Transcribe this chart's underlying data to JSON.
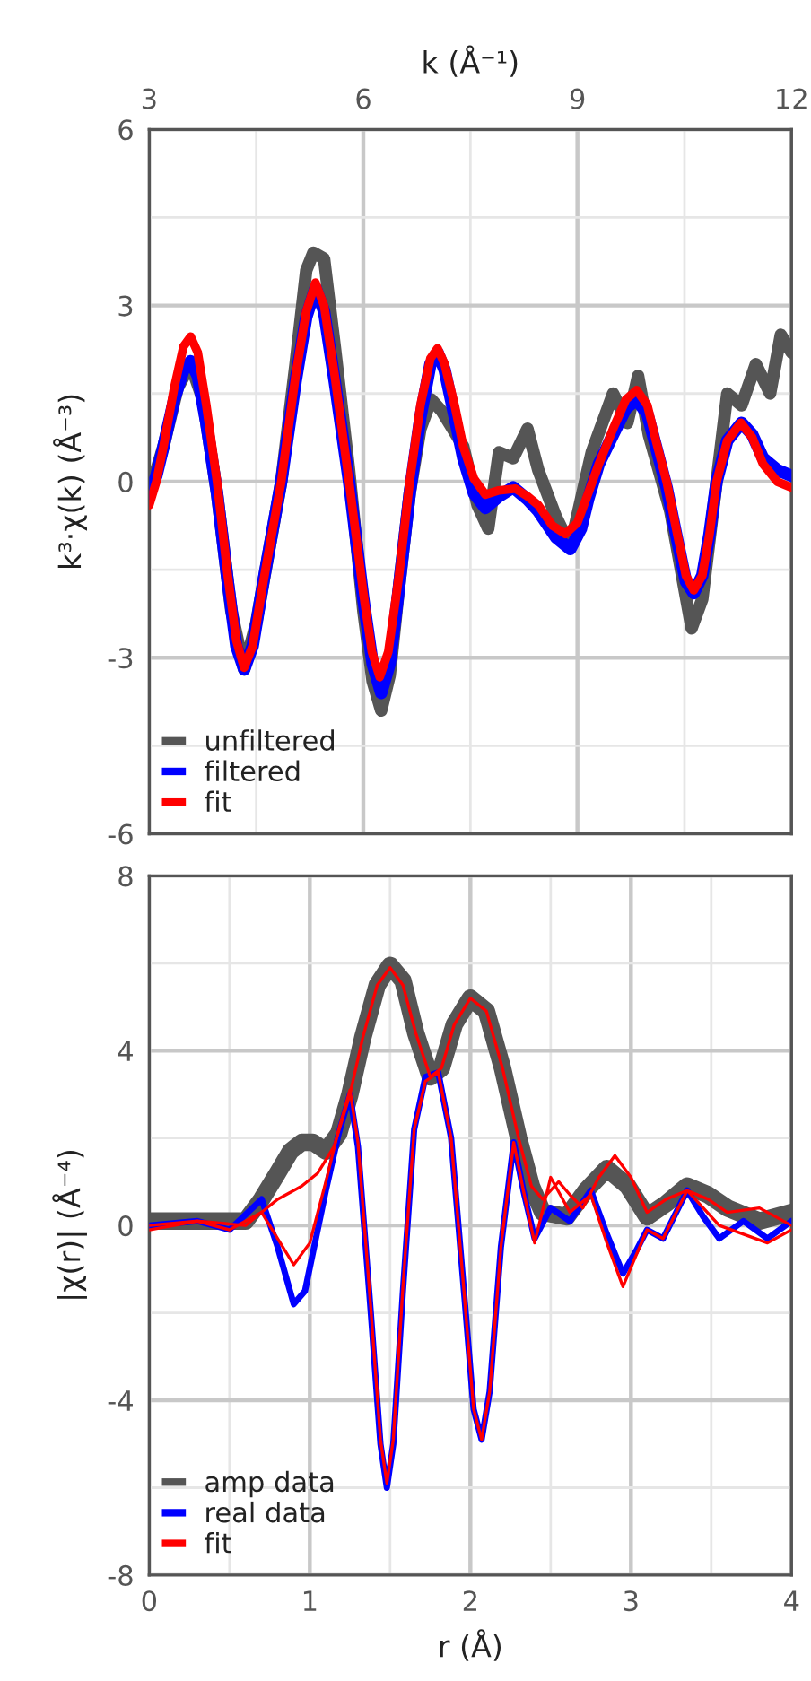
{
  "chart_data": [
    {
      "type": "line",
      "xlabel": "k (Å⁻¹)",
      "ylabel": "k³·χ(k) (Å⁻³)",
      "xlim": [
        3,
        12
      ],
      "xticks": [
        3,
        6,
        9,
        12
      ],
      "ylim": [
        -6,
        6
      ],
      "yticks": [
        -6,
        -3,
        0,
        3,
        6
      ],
      "grid": true,
      "legend": "bottom left",
      "line_style": "solid",
      "series": [
        {
          "name": "unfiltered",
          "color": "#555555",
          "x": [
            3.0,
            3.2,
            3.4,
            3.58,
            3.75,
            3.95,
            4.15,
            4.33,
            4.5,
            4.85,
            5.05,
            5.2,
            5.3,
            5.45,
            5.6,
            5.8,
            6.0,
            6.13,
            6.25,
            6.37,
            6.5,
            6.65,
            6.8,
            6.95,
            7.1,
            7.25,
            7.4,
            7.6,
            7.75,
            7.9,
            8.1,
            8.3,
            8.45,
            8.7,
            8.9,
            9.2,
            9.5,
            9.7,
            9.85,
            10.0,
            10.3,
            10.6,
            10.75,
            10.9,
            11.1,
            11.3,
            11.5,
            11.7,
            11.85,
            12.0
          ],
          "values": [
            -0.2,
            0.6,
            1.6,
            2.0,
            1.4,
            -0.2,
            -2.2,
            -3.2,
            -2.4,
            0.0,
            2.0,
            3.6,
            3.9,
            3.8,
            2.3,
            0.2,
            -2.2,
            -3.4,
            -3.9,
            -3.3,
            -1.8,
            -0.2,
            0.9,
            1.4,
            1.2,
            0.9,
            0.6,
            -0.4,
            -0.8,
            0.5,
            0.4,
            0.9,
            0.2,
            -0.6,
            -1.1,
            0.5,
            1.5,
            1.0,
            1.8,
            0.8,
            -0.5,
            -2.5,
            -2.0,
            -0.5,
            1.5,
            1.3,
            2.0,
            1.5,
            2.5,
            2.2
          ]
        },
        {
          "name": "filtered",
          "color": "#0000ff",
          "x": [
            3.0,
            3.1,
            3.2,
            3.35,
            3.48,
            3.58,
            3.68,
            3.8,
            3.95,
            4.1,
            4.22,
            4.33,
            4.45,
            4.6,
            4.85,
            5.05,
            5.2,
            5.33,
            5.45,
            5.6,
            5.8,
            6.0,
            6.13,
            6.25,
            6.37,
            6.5,
            6.65,
            6.8,
            6.94,
            7.04,
            7.14,
            7.28,
            7.4,
            7.55,
            7.71,
            7.9,
            8.1,
            8.3,
            8.45,
            8.7,
            8.9,
            9.05,
            9.15,
            9.3,
            9.5,
            9.68,
            9.83,
            9.98,
            10.1,
            10.25,
            10.4,
            10.52,
            10.63,
            10.75,
            10.85,
            10.95,
            11.1,
            11.3,
            11.45,
            11.6,
            11.8,
            12.0
          ],
          "values": [
            -0.2,
            0.1,
            0.6,
            1.4,
            1.9,
            2.05,
            1.8,
            1.0,
            -0.2,
            -1.7,
            -2.8,
            -3.2,
            -2.8,
            -1.7,
            0.0,
            1.7,
            2.8,
            3.3,
            2.9,
            1.7,
            0.0,
            -2.0,
            -3.1,
            -3.6,
            -3.1,
            -1.8,
            -0.2,
            1.1,
            2.0,
            2.2,
            1.9,
            1.1,
            0.4,
            -0.2,
            -0.45,
            -0.25,
            -0.1,
            -0.3,
            -0.5,
            -0.95,
            -1.15,
            -0.8,
            -0.3,
            0.3,
            0.8,
            1.25,
            1.4,
            1.15,
            0.6,
            -0.1,
            -1.0,
            -1.7,
            -1.9,
            -1.6,
            -0.9,
            0.0,
            0.7,
            1.0,
            0.8,
            0.4,
            0.2,
            0.1
          ]
        },
        {
          "name": "fit",
          "color": "#ff0000",
          "x": [
            3.0,
            3.1,
            3.2,
            3.35,
            3.48,
            3.58,
            3.68,
            3.8,
            3.95,
            4.1,
            4.22,
            4.33,
            4.45,
            4.6,
            4.85,
            5.05,
            5.2,
            5.33,
            5.45,
            5.6,
            5.8,
            6.0,
            6.12,
            6.23,
            6.35,
            6.5,
            6.65,
            6.8,
            6.94,
            7.04,
            7.14,
            7.28,
            7.4,
            7.55,
            7.71,
            7.9,
            8.13,
            8.3,
            8.45,
            8.65,
            8.83,
            9.0,
            9.15,
            9.3,
            9.5,
            9.68,
            9.83,
            9.98,
            10.1,
            10.25,
            10.4,
            10.52,
            10.63,
            10.75,
            10.85,
            10.95,
            11.1,
            11.29,
            11.45,
            11.6,
            11.8,
            12.0
          ],
          "values": [
            -0.4,
            0.0,
            0.6,
            1.6,
            2.3,
            2.47,
            2.2,
            1.3,
            0.0,
            -1.6,
            -2.7,
            -3.17,
            -2.8,
            -1.7,
            0.0,
            1.8,
            2.9,
            3.39,
            3.0,
            1.8,
            0.0,
            -1.9,
            -2.9,
            -3.33,
            -2.9,
            -1.6,
            0.0,
            1.3,
            2.1,
            2.27,
            2.0,
            1.3,
            0.6,
            0.05,
            -0.22,
            -0.15,
            -0.12,
            -0.25,
            -0.4,
            -0.75,
            -0.89,
            -0.7,
            -0.2,
            0.3,
            0.9,
            1.4,
            1.56,
            1.3,
            0.7,
            0.0,
            -0.9,
            -1.6,
            -1.85,
            -1.6,
            -0.9,
            0.0,
            0.7,
            1.0,
            0.75,
            0.3,
            0.0,
            -0.1
          ]
        }
      ]
    },
    {
      "type": "line",
      "xlabel": "r (Å)",
      "ylabel": "|χ(r)| (Å⁻⁴)",
      "xlim": [
        0,
        4
      ],
      "xticks": [
        0,
        1,
        2,
        3,
        4
      ],
      "ylim": [
        -8,
        8
      ],
      "yticks": [
        -8,
        -4,
        0,
        4,
        8
      ],
      "grid": true,
      "legend": "bottom left",
      "line_style": "solid",
      "series": [
        {
          "name": "amp data",
          "color": "#555555",
          "x": [
            0.0,
            0.5,
            0.6,
            0.7,
            0.8,
            0.88,
            0.95,
            1.02,
            1.1,
            1.18,
            1.25,
            1.33,
            1.42,
            1.5,
            1.58,
            1.66,
            1.75,
            1.82,
            1.9,
            2.0,
            2.1,
            2.2,
            2.3,
            2.38,
            2.45,
            2.6,
            2.72,
            2.85,
            2.98,
            3.1,
            3.22,
            3.35,
            3.48,
            3.6,
            3.8,
            4.0
          ],
          "values": [
            0.1,
            0.1,
            0.1,
            0.6,
            1.2,
            1.7,
            1.9,
            1.9,
            1.7,
            2.1,
            3.0,
            4.3,
            5.5,
            5.95,
            5.6,
            4.4,
            3.4,
            3.6,
            4.6,
            5.2,
            4.9,
            3.6,
            2.0,
            0.9,
            0.3,
            0.2,
            0.8,
            1.3,
            0.9,
            0.2,
            0.5,
            0.9,
            0.7,
            0.4,
            0.1,
            0.3
          ]
        },
        {
          "name": "real data",
          "color": "#0000ff",
          "x": [
            0.0,
            0.3,
            0.5,
            0.7,
            0.8,
            0.9,
            0.97,
            1.1,
            1.18,
            1.25,
            1.3,
            1.38,
            1.44,
            1.48,
            1.52,
            1.58,
            1.65,
            1.72,
            1.8,
            1.88,
            1.96,
            2.02,
            2.07,
            2.12,
            2.19,
            2.27,
            2.33,
            2.4,
            2.5,
            2.62,
            2.75,
            2.85,
            2.95,
            3.03,
            3.1,
            3.2,
            3.35,
            3.45,
            3.55,
            3.7,
            3.85,
            4.0
          ],
          "values": [
            0.0,
            0.1,
            -0.1,
            0.6,
            -0.5,
            -1.8,
            -1.5,
            0.8,
            2.1,
            3.0,
            1.8,
            -2.0,
            -5.0,
            -6.0,
            -5.0,
            -1.5,
            2.2,
            3.4,
            3.5,
            2.0,
            -1.5,
            -4.2,
            -4.9,
            -3.8,
            -0.5,
            1.9,
            0.8,
            -0.3,
            0.4,
            0.1,
            0.8,
            -0.2,
            -1.1,
            -0.6,
            -0.1,
            -0.3,
            0.8,
            0.2,
            -0.3,
            0.1,
            -0.3,
            0.1
          ]
        },
        {
          "name": "fit",
          "color": "#ff0000",
          "x": [
            0.0,
            0.3,
            0.5,
            0.7,
            0.8,
            0.9,
            1.0,
            1.1,
            1.18,
            1.25,
            1.3,
            1.38,
            1.44,
            1.48,
            1.52,
            1.58,
            1.65,
            1.72,
            1.8,
            1.88,
            1.96,
            2.02,
            2.07,
            2.12,
            2.19,
            2.27,
            2.33,
            2.4,
            2.5,
            2.62,
            2.75,
            2.85,
            2.95,
            3.03,
            3.1,
            3.2,
            3.35,
            3.55,
            3.85,
            4.0
          ],
          "values": [
            -0.1,
            0.1,
            -0.1,
            0.3,
            -0.3,
            -0.9,
            -0.4,
            1.0,
            2.2,
            3.1,
            1.9,
            -1.9,
            -4.9,
            -5.9,
            -4.9,
            -1.4,
            2.2,
            3.3,
            3.5,
            2.0,
            -1.5,
            -4.2,
            -4.9,
            -3.8,
            -0.5,
            1.9,
            0.8,
            -0.4,
            1.1,
            0.3,
            0.7,
            -0.4,
            -1.4,
            -0.7,
            -0.1,
            -0.3,
            0.8,
            0.0,
            -0.4,
            -0.1
          ]
        },
        {
          "color": "#ff0000",
          "x": [
            0.0,
            0.3,
            0.6,
            0.7,
            0.8,
            0.95,
            1.05,
            1.15,
            1.25,
            1.33,
            1.42,
            1.5,
            1.58,
            1.66,
            1.75,
            1.82,
            1.9,
            2.0,
            2.1,
            2.2,
            2.3,
            2.38,
            2.45,
            2.55,
            2.62,
            2.7,
            2.8,
            2.9,
            3.0,
            3.1,
            3.22,
            3.35,
            3.48,
            3.6,
            3.8,
            4.0
          ],
          "values": [
            0.0,
            0.1,
            0.0,
            0.3,
            0.6,
            0.9,
            1.2,
            1.8,
            3.0,
            4.3,
            5.5,
            5.9,
            5.5,
            4.4,
            3.4,
            3.6,
            4.6,
            5.2,
            4.9,
            3.6,
            2.0,
            0.9,
            0.6,
            1.0,
            0.7,
            0.4,
            1.1,
            1.6,
            1.1,
            0.3,
            0.6,
            0.8,
            0.6,
            0.3,
            0.4,
            0.0
          ]
        }
      ]
    }
  ]
}
